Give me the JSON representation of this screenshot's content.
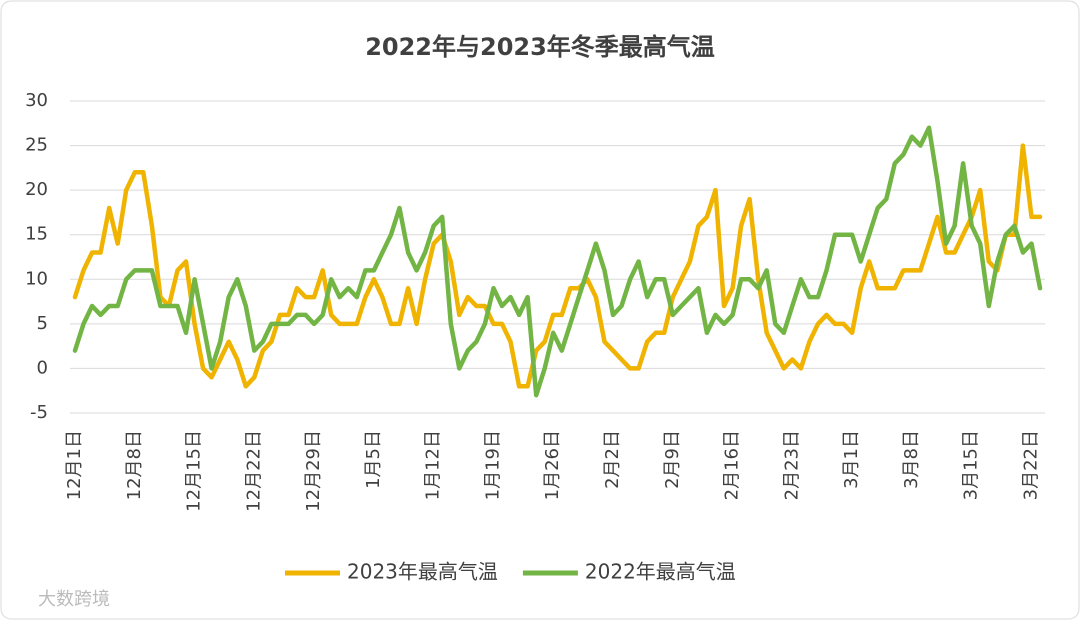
{
  "chart_data": {
    "type": "line",
    "title": "2022年与2023年冬季最高气温",
    "watermark": "大数跨境",
    "categories": [
      "12月1日",
      null,
      null,
      null,
      null,
      null,
      null,
      "12月8日",
      null,
      null,
      null,
      null,
      null,
      null,
      "12月15日",
      null,
      null,
      null,
      null,
      null,
      null,
      "12月22日",
      null,
      null,
      null,
      null,
      null,
      null,
      "12月29日",
      null,
      null,
      null,
      null,
      null,
      null,
      "1月5日",
      null,
      null,
      null,
      null,
      null,
      null,
      "1月12日",
      null,
      null,
      null,
      null,
      null,
      null,
      "1月19日",
      null,
      null,
      null,
      null,
      null,
      null,
      "1月26日",
      null,
      null,
      null,
      null,
      null,
      null,
      "2月2日",
      null,
      null,
      null,
      null,
      null,
      null,
      "2月9日",
      null,
      null,
      null,
      null,
      null,
      null,
      "2月16日",
      null,
      null,
      null,
      null,
      null,
      null,
      "2月23日",
      null,
      null,
      null,
      null,
      null,
      null,
      "3月1日",
      null,
      null,
      null,
      null,
      null,
      null,
      "3月8日",
      null,
      null,
      null,
      null,
      null,
      null,
      "3月15日",
      null,
      null,
      null,
      null,
      null,
      null,
      "3月22日",
      null
    ],
    "series": [
      {
        "name": "2023年最高气温",
        "color": "#efb300",
        "values": [
          8,
          11,
          13,
          13,
          18,
          14,
          20,
          22,
          22,
          16,
          8,
          7,
          11,
          12,
          5,
          0,
          -1,
          1,
          3,
          1,
          -2,
          -1,
          2,
          3,
          6,
          6,
          9,
          8,
          8,
          11,
          6,
          5,
          5,
          5,
          8,
          10,
          8,
          5,
          5,
          9,
          5,
          10,
          14,
          15,
          12,
          6,
          8,
          7,
          7,
          5,
          5,
          3,
          -2,
          -2,
          2,
          3,
          6,
          6,
          9,
          9,
          10,
          8,
          3,
          2,
          1,
          0,
          0,
          3,
          4,
          4,
          8,
          10,
          12,
          16,
          17,
          20,
          7,
          9,
          16,
          19,
          10,
          4,
          2,
          0,
          1,
          0,
          3,
          5,
          6,
          5,
          5,
          4,
          9,
          12,
          9,
          9,
          9,
          11,
          11,
          11,
          14,
          17,
          13,
          13,
          15,
          17,
          20,
          12,
          11,
          15,
          15,
          25,
          17,
          17
        ]
      },
      {
        "name": "2022年最高气温",
        "color": "#72b545",
        "values": [
          2,
          5,
          7,
          6,
          7,
          7,
          10,
          11,
          11,
          11,
          7,
          7,
          7,
          4,
          10,
          5,
          0,
          3,
          8,
          10,
          7,
          2,
          3,
          5,
          5,
          5,
          6,
          6,
          5,
          6,
          10,
          8,
          9,
          8,
          11,
          11,
          13,
          15,
          18,
          13,
          11,
          13,
          16,
          17,
          5,
          0,
          2,
          3,
          5,
          9,
          7,
          8,
          6,
          8,
          -3,
          0,
          4,
          2,
          5,
          8,
          11,
          14,
          11,
          6,
          7,
          10,
          12,
          8,
          10,
          10,
          6,
          7,
          8,
          9,
          4,
          6,
          5,
          6,
          10,
          10,
          9,
          11,
          5,
          4,
          7,
          10,
          8,
          8,
          11,
          15,
          15,
          15,
          12,
          15,
          18,
          19,
          23,
          24,
          26,
          25,
          27,
          21,
          14,
          16,
          23,
          16,
          14,
          7,
          12,
          15,
          16,
          13,
          14,
          9
        ]
      }
    ],
    "ylim": [
      -5,
      30
    ],
    "yticks": [
      -5,
      0,
      5,
      10,
      15,
      20,
      25,
      30
    ],
    "grid": true,
    "legend": "bottom"
  }
}
